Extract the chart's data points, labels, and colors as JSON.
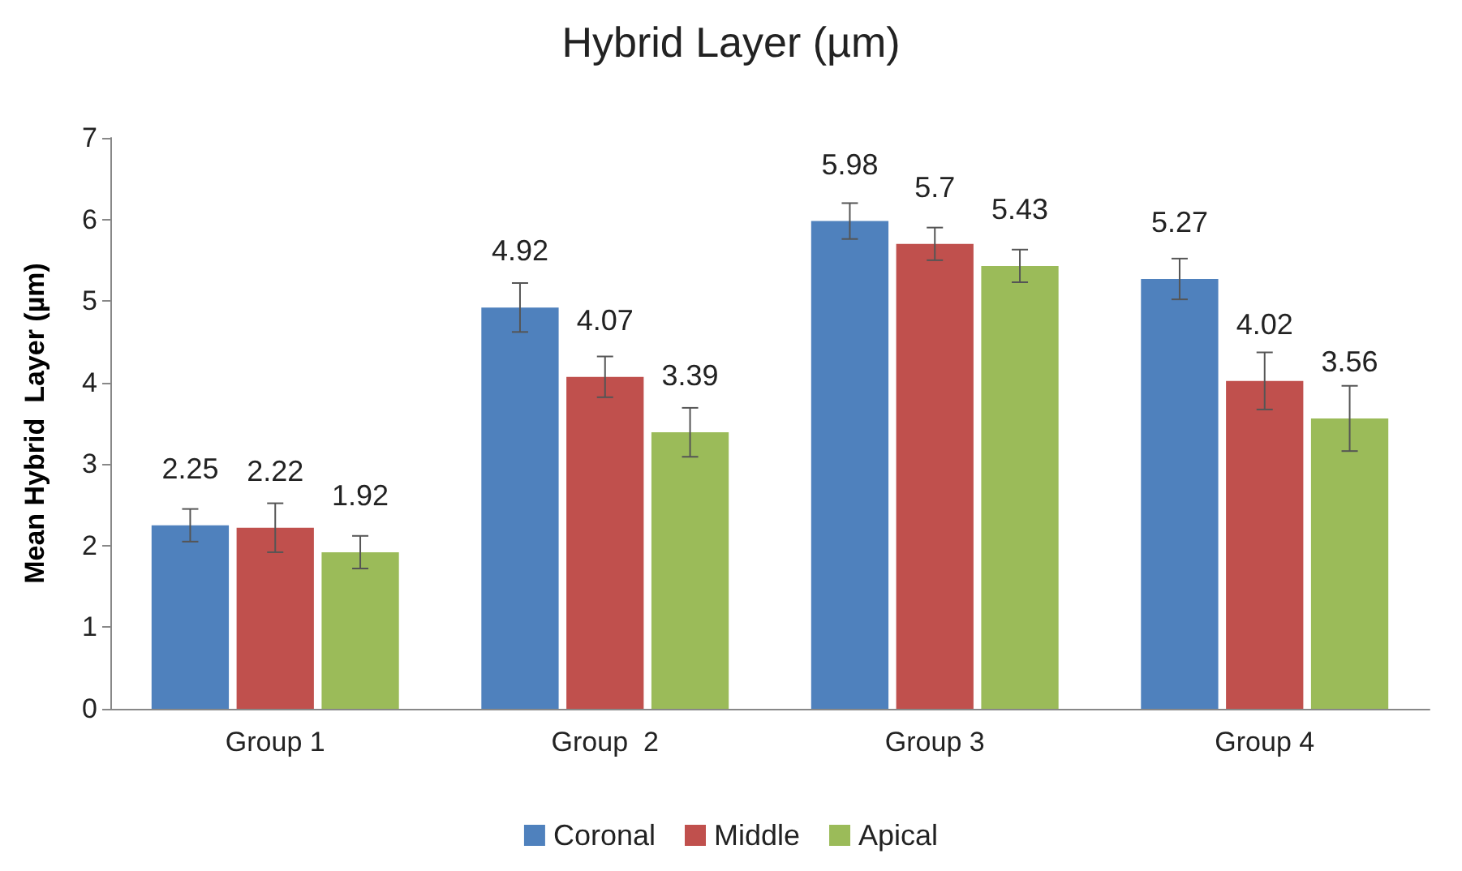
{
  "chart_data": {
    "type": "bar",
    "title": "Hybrid Layer (µm)",
    "ylabel": "Mean Hybrid  Layer (µm)",
    "categories": [
      "Group 1",
      "Group  2",
      "Group 3",
      "Group 4"
    ],
    "series": [
      {
        "name": "Coronal",
        "color": "#4f81bd",
        "values": [
          2.25,
          4.92,
          5.98,
          5.27
        ],
        "errors": [
          0.2,
          0.3,
          0.22,
          0.25
        ]
      },
      {
        "name": "Middle",
        "color": "#c0504d",
        "values": [
          2.22,
          4.07,
          5.7,
          4.02
        ],
        "errors": [
          0.3,
          0.25,
          0.2,
          0.35
        ]
      },
      {
        "name": "Apical",
        "color": "#9bbb59",
        "values": [
          1.92,
          3.39,
          5.43,
          3.56
        ],
        "errors": [
          0.2,
          0.3,
          0.2,
          0.4
        ]
      }
    ],
    "ylim": [
      0,
      7
    ],
    "yticks": [
      0,
      1,
      2,
      3,
      4,
      5,
      6,
      7
    ],
    "grid": false,
    "legend": "bottom",
    "data_labels": true
  }
}
